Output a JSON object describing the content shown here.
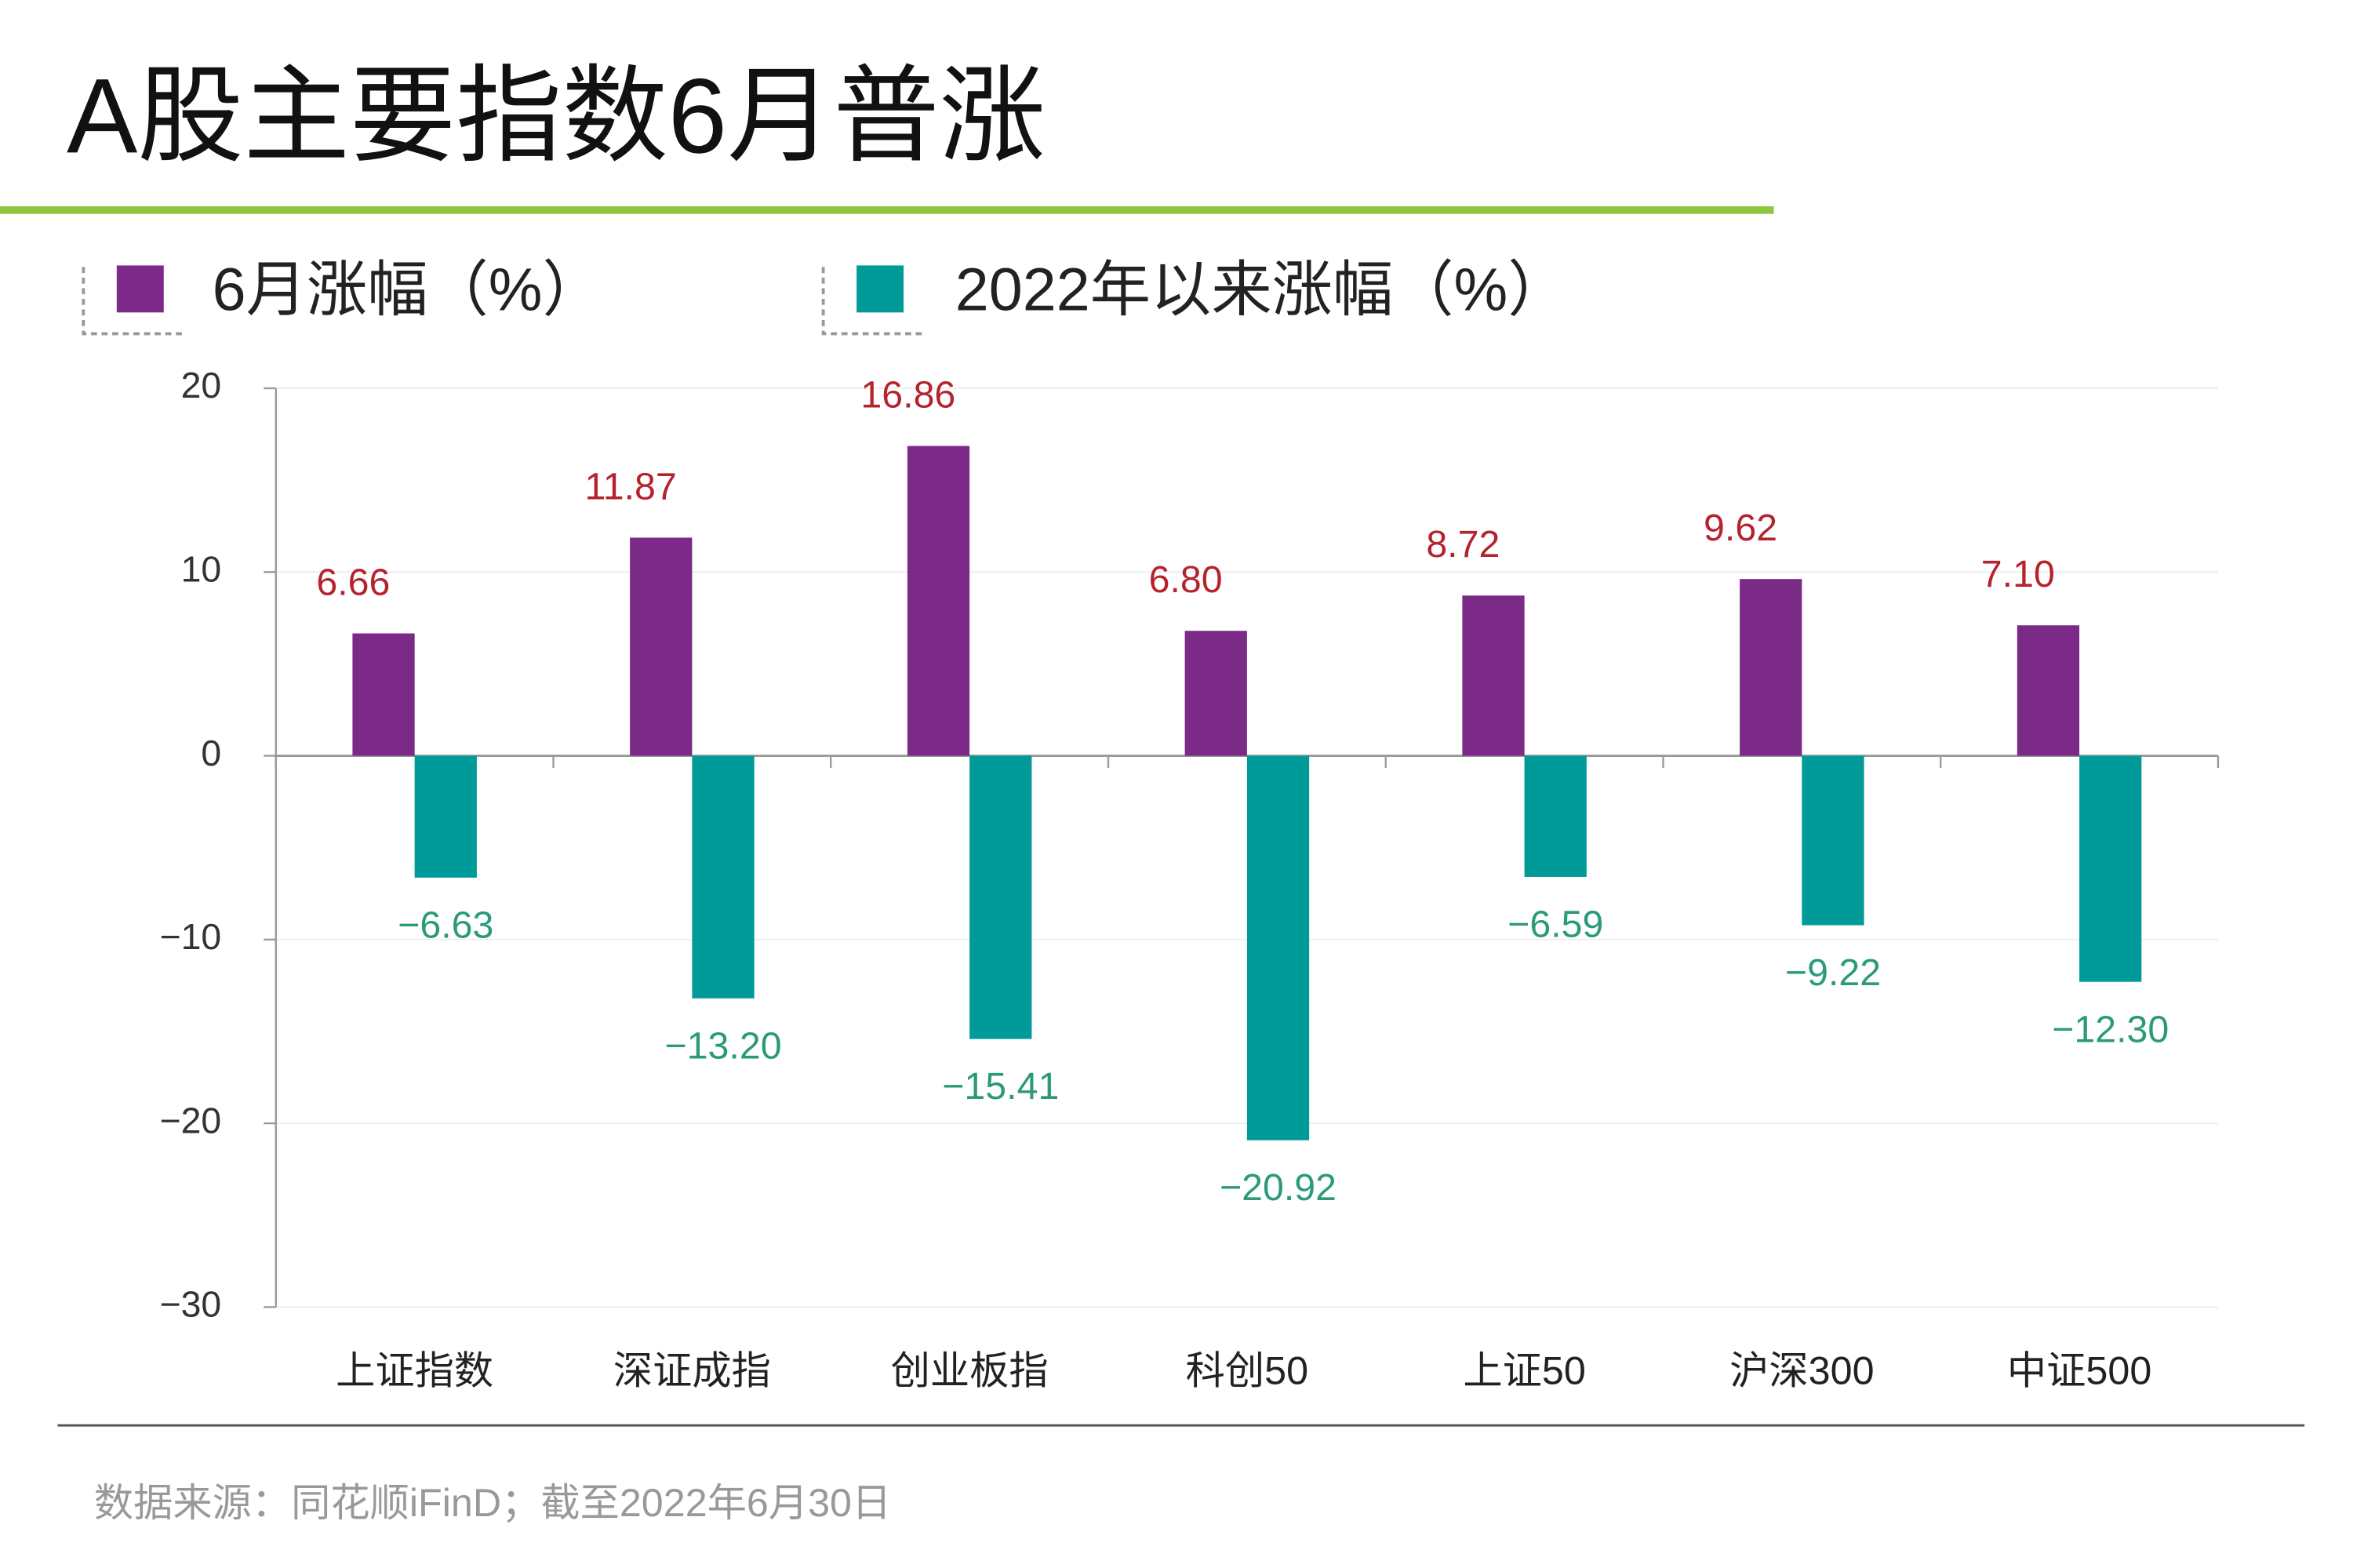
{
  "chart_data": {
    "type": "bar",
    "title": "A股主要指数6月普涨",
    "categories": [
      "上证指数",
      "深证成指",
      "创业板指",
      "科创50",
      "上证50",
      "沪深300",
      "中证500"
    ],
    "series": [
      {
        "name": "6月涨幅（%）",
        "color": "#7b2a87",
        "label_color": "#b5232f",
        "values": [
          6.66,
          11.87,
          16.86,
          6.8,
          8.72,
          9.62,
          7.1
        ],
        "value_labels": [
          "6.66",
          "11.87",
          "16.86",
          "6.80",
          "8.72",
          "9.62",
          "7.10"
        ]
      },
      {
        "name": "2022年以来涨幅（%）",
        "color": "#009b98",
        "label_color": "#2a9a7a",
        "values": [
          -6.63,
          -13.2,
          -15.41,
          -20.92,
          -6.59,
          -9.22,
          -12.3
        ],
        "value_labels": [
          "−6.63",
          "−13.20",
          "−15.41",
          "−20.92",
          "−6.59",
          "−9.22",
          "−12.30"
        ]
      }
    ],
    "ylim": [
      -30,
      20
    ],
    "yticks": [
      {
        "value": -30,
        "label": "−30"
      },
      {
        "value": -20,
        "label": "−20"
      },
      {
        "value": -10,
        "label": "−10"
      },
      0,
      10,
      20
    ],
    "grid": true,
    "source": "数据来源：同花顺iFinD；截至2022年6月30日"
  }
}
